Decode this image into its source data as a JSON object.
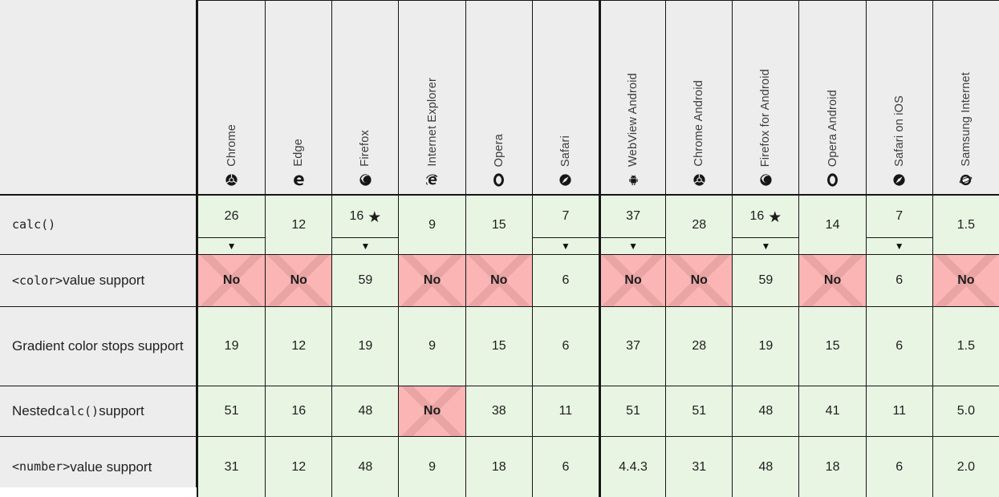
{
  "table": {
    "glyphs": {
      "star": "★",
      "history_marker": "▼"
    },
    "colors": {
      "supported_bg": "#e9f5e3",
      "unsupported_bg": "#fbb5b5",
      "unsupported_cross": "#e9a4a4",
      "header_bg": "#ededed",
      "border": "#161616"
    },
    "browsers": [
      {
        "name": "Chrome",
        "icon": "chrome-icon"
      },
      {
        "name": "Edge",
        "icon": "edge-icon"
      },
      {
        "name": "Firefox",
        "icon": "firefox-icon"
      },
      {
        "name": "Internet Explorer",
        "icon": "internet-explorer-icon"
      },
      {
        "name": "Opera",
        "icon": "opera-icon"
      },
      {
        "name": "Safari",
        "icon": "safari-icon"
      },
      {
        "name": "WebView Android",
        "icon": "android-icon"
      },
      {
        "name": "Chrome Android",
        "icon": "chrome-icon"
      },
      {
        "name": "Firefox for Android",
        "icon": "firefox-icon"
      },
      {
        "name": "Opera Android",
        "icon": "opera-icon"
      },
      {
        "name": "Safari on iOS",
        "icon": "safari-icon"
      },
      {
        "name": "Samsung Internet",
        "icon": "samsung-internet-icon"
      }
    ],
    "rows": [
      {
        "label": [
          {
            "text": "calc()",
            "code": true
          }
        ],
        "cells": [
          {
            "value": "26",
            "status": "yes",
            "history": true
          },
          {
            "value": "12",
            "status": "yes"
          },
          {
            "value": "16",
            "status": "yes",
            "star": true,
            "history": true
          },
          {
            "value": "9",
            "status": "yes"
          },
          {
            "value": "15",
            "status": "yes"
          },
          {
            "value": "7",
            "status": "yes",
            "history": true
          },
          {
            "value": "37",
            "status": "yes",
            "history": true
          },
          {
            "value": "28",
            "status": "yes"
          },
          {
            "value": "16",
            "status": "yes",
            "star": true,
            "history": true
          },
          {
            "value": "14",
            "status": "yes"
          },
          {
            "value": "7",
            "status": "yes",
            "history": true
          },
          {
            "value": "1.5",
            "status": "yes"
          }
        ]
      },
      {
        "label": [
          {
            "text": "<color>",
            "code": true
          },
          {
            "text": " value support",
            "code": false
          }
        ],
        "cells": [
          {
            "value": "No",
            "status": "no"
          },
          {
            "value": "No",
            "status": "no"
          },
          {
            "value": "59",
            "status": "yes"
          },
          {
            "value": "No",
            "status": "no"
          },
          {
            "value": "No",
            "status": "no"
          },
          {
            "value": "6",
            "status": "yes"
          },
          {
            "value": "No",
            "status": "no"
          },
          {
            "value": "No",
            "status": "no"
          },
          {
            "value": "59",
            "status": "yes"
          },
          {
            "value": "No",
            "status": "no"
          },
          {
            "value": "6",
            "status": "yes"
          },
          {
            "value": "No",
            "status": "no"
          }
        ]
      },
      {
        "label": [
          {
            "text": "Gradient color stops support",
            "code": false
          }
        ],
        "cells": [
          {
            "value": "19",
            "status": "yes"
          },
          {
            "value": "12",
            "status": "yes"
          },
          {
            "value": "19",
            "status": "yes"
          },
          {
            "value": "9",
            "status": "yes"
          },
          {
            "value": "15",
            "status": "yes"
          },
          {
            "value": "6",
            "status": "yes"
          },
          {
            "value": "37",
            "status": "yes"
          },
          {
            "value": "28",
            "status": "yes"
          },
          {
            "value": "19",
            "status": "yes"
          },
          {
            "value": "15",
            "status": "yes"
          },
          {
            "value": "6",
            "status": "yes"
          },
          {
            "value": "1.5",
            "status": "yes"
          }
        ]
      },
      {
        "label": [
          {
            "text": "Nested ",
            "code": false
          },
          {
            "text": "calc()",
            "code": true
          },
          {
            "text": " support",
            "code": false
          }
        ],
        "cells": [
          {
            "value": "51",
            "status": "yes"
          },
          {
            "value": "16",
            "status": "yes"
          },
          {
            "value": "48",
            "status": "yes"
          },
          {
            "value": "No",
            "status": "no"
          },
          {
            "value": "38",
            "status": "yes"
          },
          {
            "value": "11",
            "status": "yes"
          },
          {
            "value": "51",
            "status": "yes"
          },
          {
            "value": "51",
            "status": "yes"
          },
          {
            "value": "48",
            "status": "yes"
          },
          {
            "value": "41",
            "status": "yes"
          },
          {
            "value": "11",
            "status": "yes"
          },
          {
            "value": "5.0",
            "status": "yes"
          }
        ]
      },
      {
        "label": [
          {
            "text": "<number>",
            "code": true
          },
          {
            "text": " value support",
            "code": false
          }
        ],
        "cells": [
          {
            "value": "31",
            "status": "yes"
          },
          {
            "value": "12",
            "status": "yes"
          },
          {
            "value": "48",
            "status": "yes"
          },
          {
            "value": "9",
            "status": "yes"
          },
          {
            "value": "18",
            "status": "yes"
          },
          {
            "value": "6",
            "status": "yes"
          },
          {
            "value": "4.4.3",
            "status": "yes"
          },
          {
            "value": "31",
            "status": "yes"
          },
          {
            "value": "48",
            "status": "yes"
          },
          {
            "value": "18",
            "status": "yes"
          },
          {
            "value": "6",
            "status": "yes"
          },
          {
            "value": "2.0",
            "status": "yes"
          }
        ]
      }
    ]
  }
}
